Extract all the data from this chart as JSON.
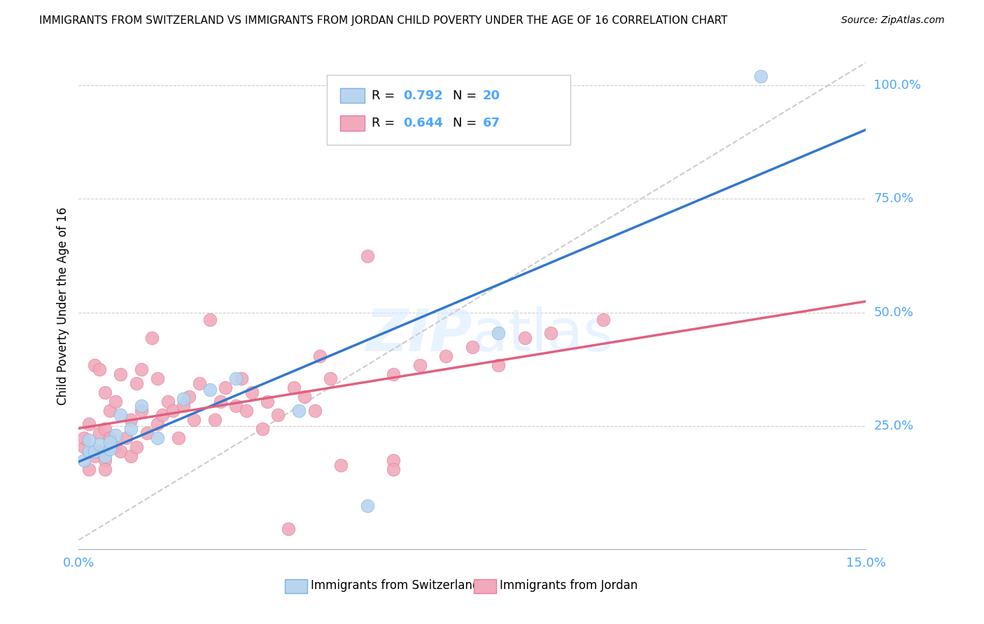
{
  "title": "IMMIGRANTS FROM SWITZERLAND VS IMMIGRANTS FROM JORDAN CHILD POVERTY UNDER THE AGE OF 16 CORRELATION CHART",
  "source": "Source: ZipAtlas.com",
  "ylabel": "Child Poverty Under the Age of 16",
  "xlim": [
    0.0,
    0.15
  ],
  "ylim": [
    -0.02,
    1.05
  ],
  "ytick_positions": [
    0.25,
    0.5,
    0.75,
    1.0
  ],
  "ytick_labels": [
    "25.0%",
    "50.0%",
    "75.0%",
    "100.0%"
  ],
  "swiss_color": "#7ab3e0",
  "swiss_fill": "#b8d4ee",
  "jordan_color": "#e87aa0",
  "jordan_fill": "#f0aabb",
  "swiss_line_color": "#3377cc",
  "jordan_line_color": "#e06080",
  "grid_color": "#cccccc",
  "background_color": "#ffffff",
  "legend_label_swiss": "Immigrants from Switzerland",
  "legend_label_jordan": "Immigrants from Jordan",
  "swiss_R": "0.792",
  "swiss_N": "20",
  "jordan_R": "0.644",
  "jordan_N": "67",
  "accent_color": "#4da6ff",
  "swiss_scatter_x": [
    0.001,
    0.002,
    0.003,
    0.004,
    0.005,
    0.006,
    0.007,
    0.008,
    0.01,
    0.012,
    0.015,
    0.02,
    0.025,
    0.03,
    0.042,
    0.055,
    0.08,
    0.13,
    0.002,
    0.006
  ],
  "swiss_scatter_y": [
    0.175,
    0.195,
    0.195,
    0.21,
    0.185,
    0.2,
    0.23,
    0.275,
    0.245,
    0.295,
    0.225,
    0.31,
    0.33,
    0.355,
    0.285,
    0.075,
    0.455,
    1.02,
    0.22,
    0.215
  ],
  "jordan_scatter_x": [
    0.001,
    0.001,
    0.002,
    0.002,
    0.003,
    0.003,
    0.004,
    0.004,
    0.004,
    0.005,
    0.005,
    0.005,
    0.006,
    0.006,
    0.007,
    0.007,
    0.008,
    0.008,
    0.009,
    0.01,
    0.01,
    0.011,
    0.011,
    0.012,
    0.012,
    0.013,
    0.014,
    0.015,
    0.015,
    0.016,
    0.017,
    0.018,
    0.019,
    0.02,
    0.021,
    0.022,
    0.023,
    0.025,
    0.026,
    0.027,
    0.028,
    0.03,
    0.031,
    0.032,
    0.033,
    0.035,
    0.036,
    0.038,
    0.04,
    0.041,
    0.043,
    0.045,
    0.046,
    0.048,
    0.05,
    0.055,
    0.06,
    0.065,
    0.07,
    0.075,
    0.08,
    0.085,
    0.09,
    0.1,
    0.005,
    0.06,
    0.06
  ],
  "jordan_scatter_y": [
    0.205,
    0.225,
    0.155,
    0.255,
    0.185,
    0.385,
    0.195,
    0.235,
    0.375,
    0.175,
    0.245,
    0.325,
    0.225,
    0.285,
    0.205,
    0.305,
    0.195,
    0.365,
    0.225,
    0.185,
    0.265,
    0.345,
    0.205,
    0.285,
    0.375,
    0.235,
    0.445,
    0.255,
    0.355,
    0.275,
    0.305,
    0.285,
    0.225,
    0.295,
    0.315,
    0.265,
    0.345,
    0.485,
    0.265,
    0.305,
    0.335,
    0.295,
    0.355,
    0.285,
    0.325,
    0.245,
    0.305,
    0.275,
    0.025,
    0.335,
    0.315,
    0.285,
    0.405,
    0.355,
    0.165,
    0.625,
    0.365,
    0.385,
    0.405,
    0.425,
    0.385,
    0.445,
    0.455,
    0.485,
    0.155,
    0.175,
    0.155
  ]
}
